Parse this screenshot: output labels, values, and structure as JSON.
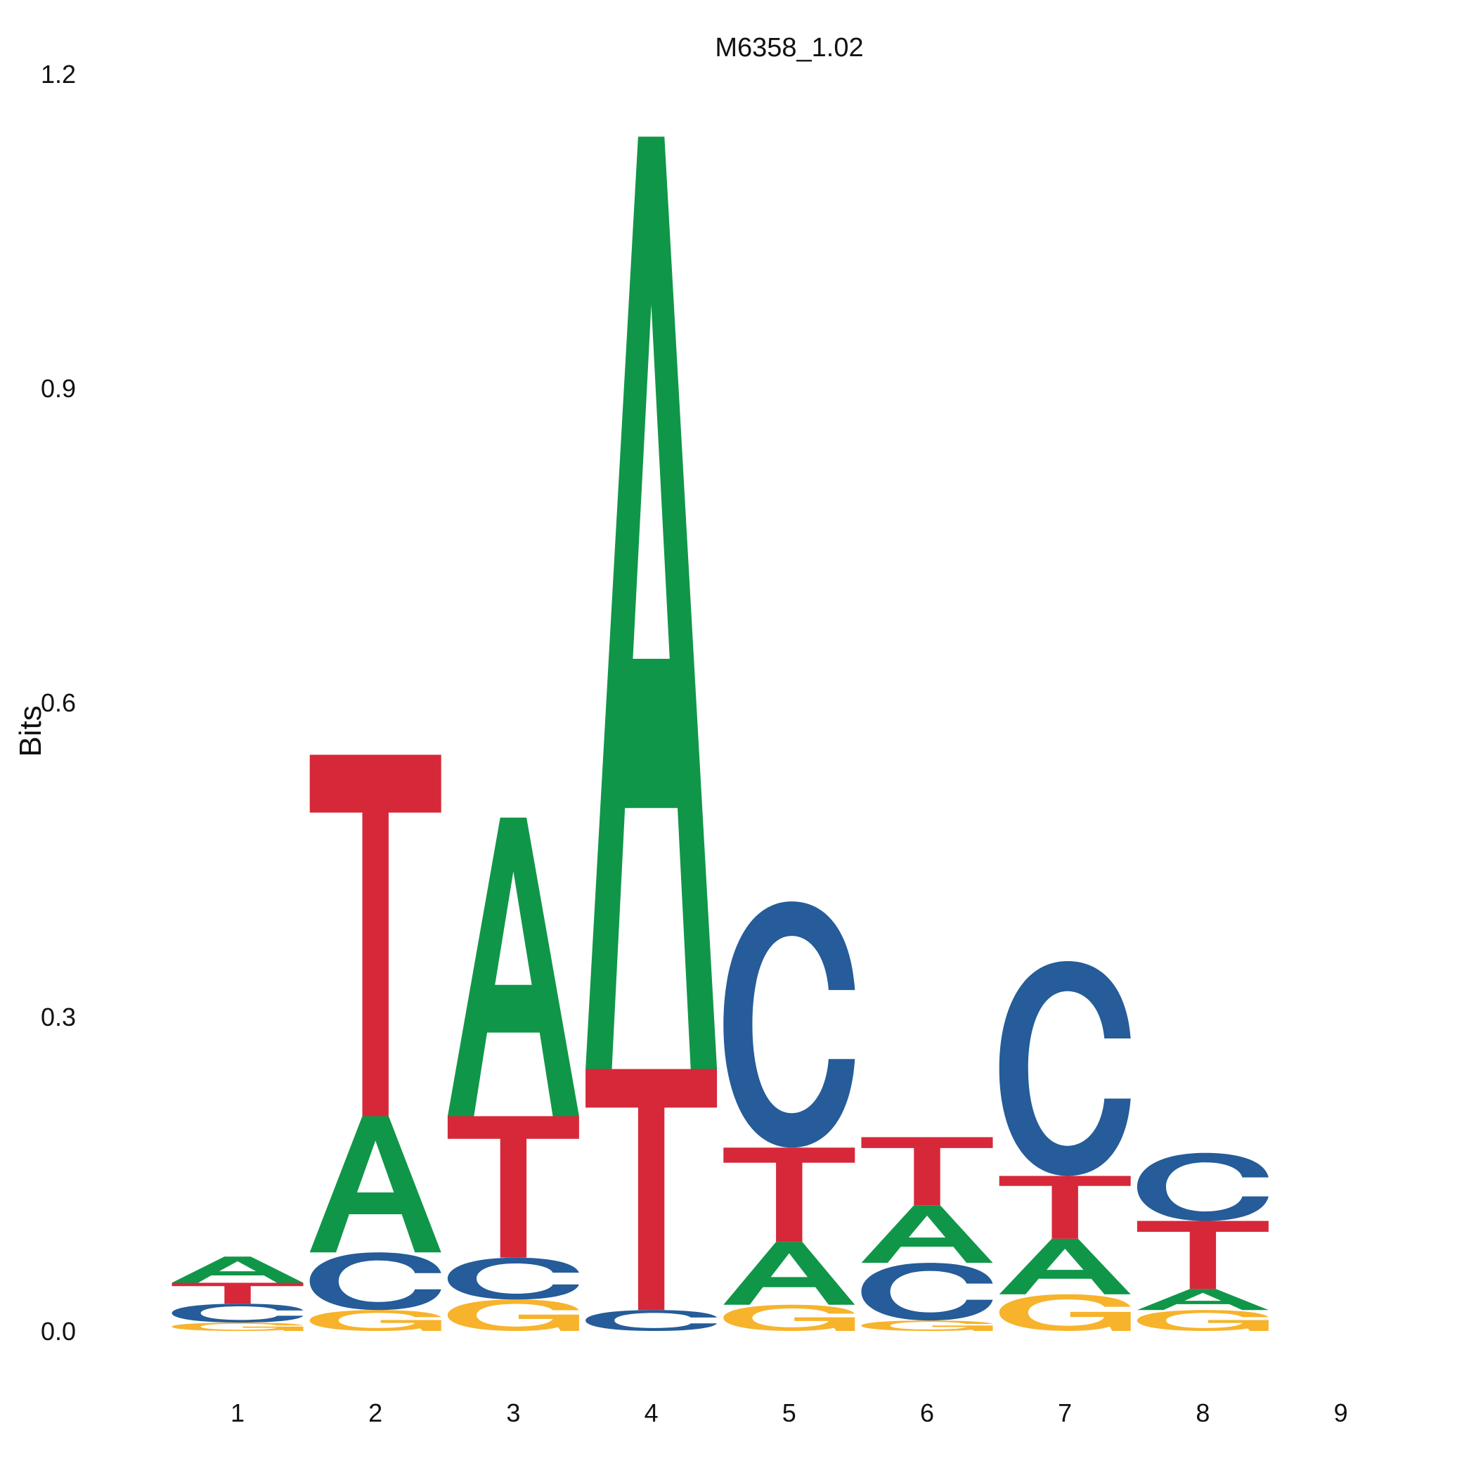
{
  "chart_data": {
    "type": "sequence-logo",
    "title": "M6358_1.02",
    "ylabel": "Bits",
    "xlabel": "",
    "ylim": [
      0,
      1.2
    ],
    "yticks": [
      "0.0",
      "0.3",
      "0.6",
      "0.9",
      "1.2"
    ],
    "categories": [
      "1",
      "2",
      "3",
      "4",
      "5",
      "6",
      "7",
      "8",
      "9"
    ],
    "colors": {
      "A": "#109648",
      "C": "#255C99",
      "G": "#F7B32B",
      "T": "#D62839"
    },
    "positions": [
      {
        "position": "1",
        "letters": [
          {
            "base": "G",
            "bits": 0.008
          },
          {
            "base": "C",
            "bits": 0.018
          },
          {
            "base": "T",
            "bits": 0.02
          },
          {
            "base": "A",
            "bits": 0.025
          }
        ]
      },
      {
        "position": "2",
        "letters": [
          {
            "base": "G",
            "bits": 0.02
          },
          {
            "base": "C",
            "bits": 0.055
          },
          {
            "base": "A",
            "bits": 0.13
          },
          {
            "base": "T",
            "bits": 0.345
          }
        ]
      },
      {
        "position": "3",
        "letters": [
          {
            "base": "G",
            "bits": 0.03
          },
          {
            "base": "C",
            "bits": 0.04
          },
          {
            "base": "T",
            "bits": 0.135
          },
          {
            "base": "A",
            "bits": 0.285
          }
        ]
      },
      {
        "position": "4",
        "letters": [
          {
            "base": "C",
            "bits": 0.02
          },
          {
            "base": "T",
            "bits": 0.23
          },
          {
            "base": "A",
            "bits": 0.89
          }
        ]
      },
      {
        "position": "5",
        "letters": [
          {
            "base": "G",
            "bits": 0.025
          },
          {
            "base": "A",
            "bits": 0.06
          },
          {
            "base": "T",
            "bits": 0.09
          },
          {
            "base": "C",
            "bits": 0.235
          }
        ]
      },
      {
        "position": "6",
        "letters": [
          {
            "base": "G",
            "bits": 0.01
          },
          {
            "base": "C",
            "bits": 0.055
          },
          {
            "base": "A",
            "bits": 0.055
          },
          {
            "base": "T",
            "bits": 0.065
          }
        ]
      },
      {
        "position": "7",
        "letters": [
          {
            "base": "G",
            "bits": 0.035
          },
          {
            "base": "A",
            "bits": 0.053
          },
          {
            "base": "T",
            "bits": 0.06
          },
          {
            "base": "C",
            "bits": 0.205
          }
        ]
      },
      {
        "position": "8",
        "letters": [
          {
            "base": "G",
            "bits": 0.02
          },
          {
            "base": "A",
            "bits": 0.02
          },
          {
            "base": "T",
            "bits": 0.065
          },
          {
            "base": "C",
            "bits": 0.065
          }
        ]
      },
      {
        "position": "9",
        "letters": []
      }
    ]
  }
}
